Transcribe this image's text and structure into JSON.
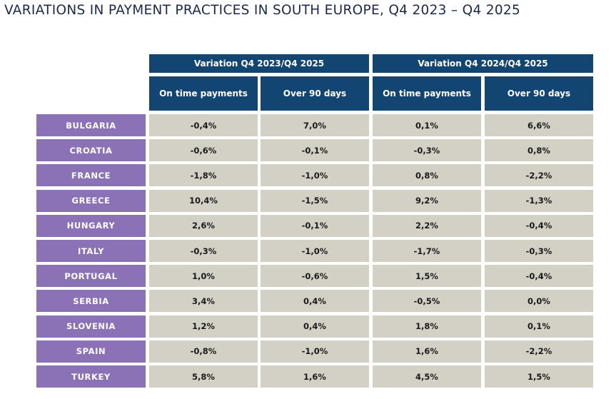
{
  "title": "VARIATIONS IN PAYMENT PRACTICES IN SOUTH EUROPE, Q4 2023 – Q4 2025",
  "groups": [
    "Variation Q4 2023/Q4 2025",
    "Variation Q4 2024/Q4 2025"
  ],
  "columns": [
    "On time payments",
    "Over 90 days",
    "On time payments",
    "Over 90 days"
  ],
  "rows": [
    {
      "country": "BULGARIA",
      "values": [
        "-0,4%",
        "7,0%",
        "0,1%",
        "6,6%"
      ]
    },
    {
      "country": "CROATIA",
      "values": [
        "-0,6%",
        "-0,1%",
        "-0,3%",
        "0,8%"
      ]
    },
    {
      "country": "FRANCE",
      "values": [
        "-1,8%",
        "-1,0%",
        "0,8%",
        "-2,2%"
      ]
    },
    {
      "country": "GREECE",
      "values": [
        "10,4%",
        "-1,5%",
        "9,2%",
        "-1,3%"
      ]
    },
    {
      "country": "HUNGARY",
      "values": [
        "2,6%",
        "-0,1%",
        "2,2%",
        "-0,4%"
      ]
    },
    {
      "country": "ITALY",
      "values": [
        "-0,3%",
        "-1,0%",
        "-1,7%",
        "-0,3%"
      ]
    },
    {
      "country": "PORTUGAL",
      "values": [
        "1,0%",
        "-0,6%",
        "1,5%",
        "-0,4%"
      ]
    },
    {
      "country": "SERBIA",
      "values": [
        "3,4%",
        "0,4%",
        "-0,5%",
        "0,0%"
      ]
    },
    {
      "country": "SLOVENIA",
      "values": [
        "1,2%",
        "0,4%",
        "1,8%",
        "0,1%"
      ]
    },
    {
      "country": "SPAIN",
      "values": [
        "-0,8%",
        "-1,0%",
        "1,6%",
        "-2,2%"
      ]
    },
    {
      "country": "TURKEY",
      "values": [
        "5,8%",
        "1,6%",
        "4,5%",
        "1,5%"
      ]
    }
  ],
  "colors": {
    "header": "#134572",
    "country": "#8b72b6",
    "value": "#d3d0c6"
  }
}
